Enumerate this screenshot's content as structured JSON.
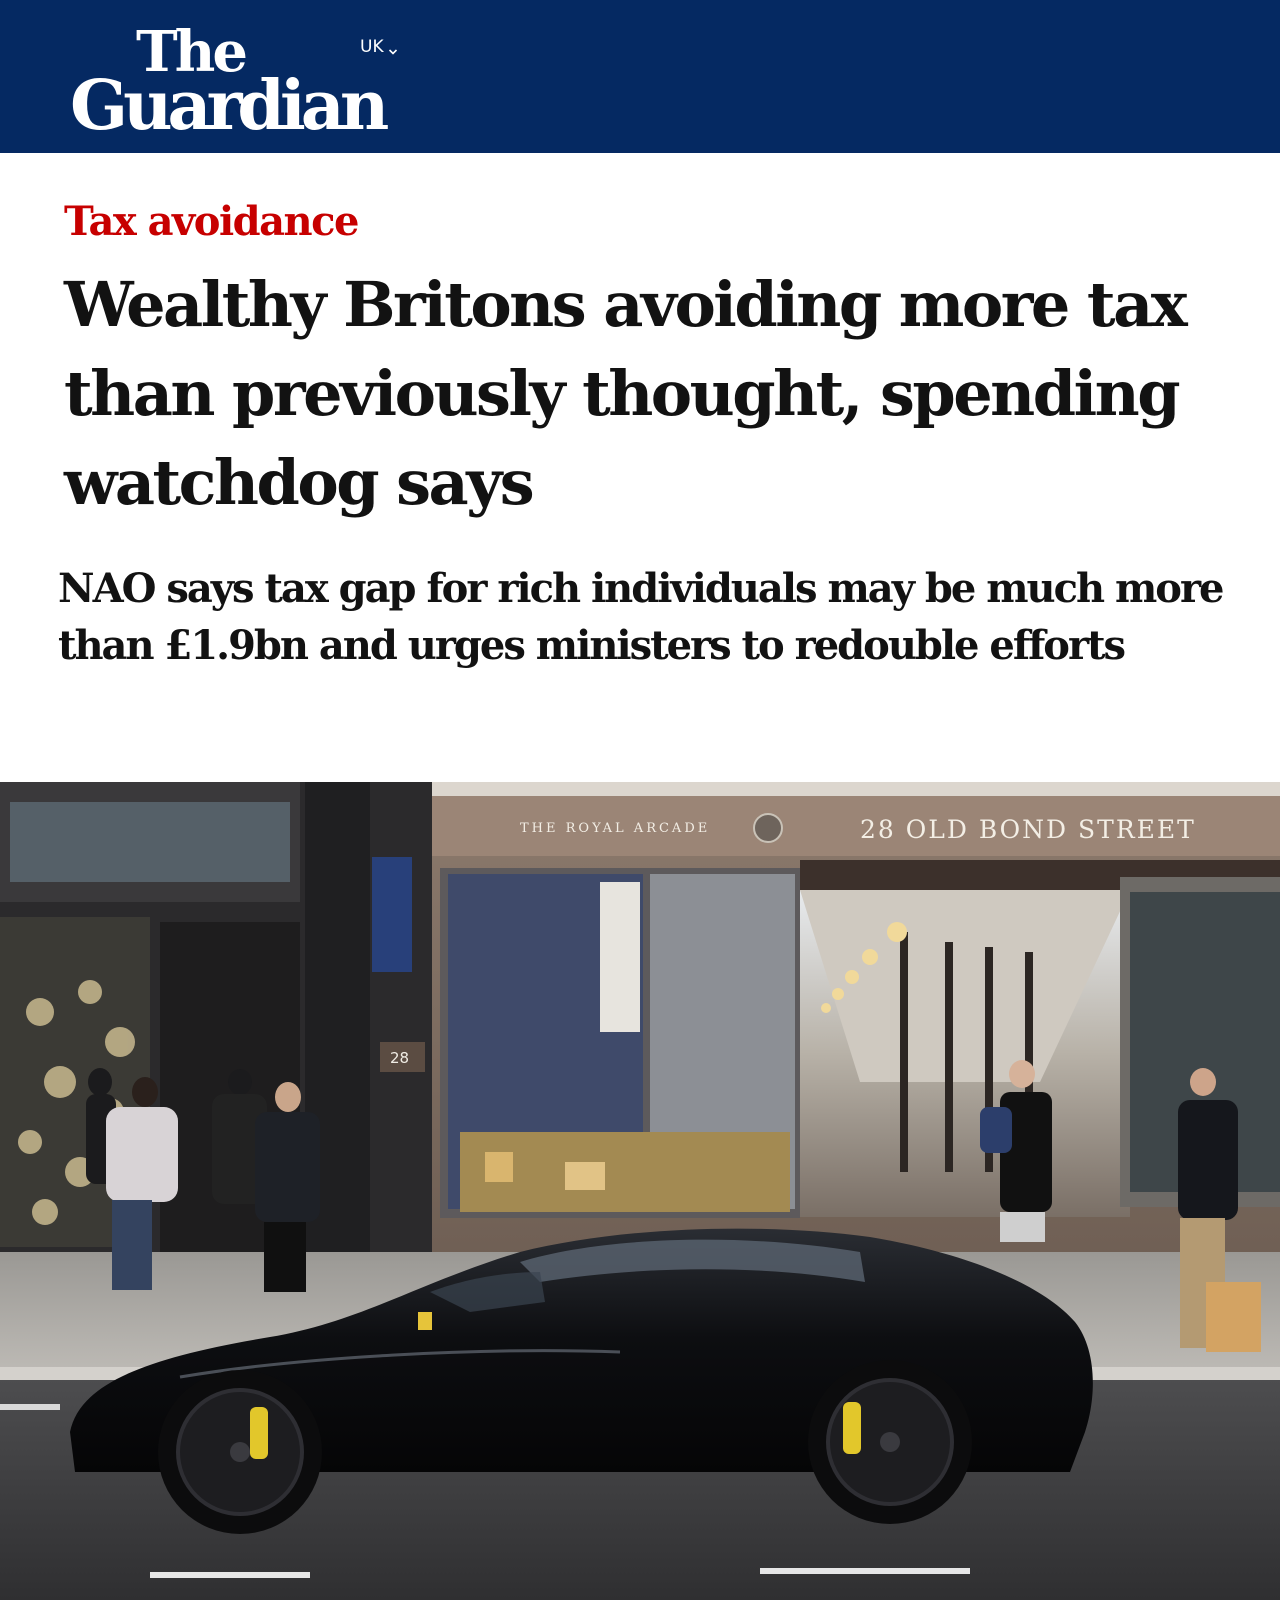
{
  "header": {
    "logo_line1": "The",
    "logo_line2": "Guardian",
    "edition": "UK",
    "colors": {
      "brand_blue": "#052962",
      "logo_text": "#ffffff"
    }
  },
  "article": {
    "section_kicker": "Tax avoidance",
    "headline": "Wealthy Britons avoiding more tax than previously thought, spending watchdog says",
    "standfirst": "NAO says tax gap for rich individuals may be much more than £1.9bn and urges ministers to redouble efforts",
    "kicker_color": "#c70000"
  },
  "photo": {
    "arcade_sign": "THE ROYAL ARCADE",
    "address_sign": "28 OLD BOND STREET",
    "door_number": "28"
  }
}
